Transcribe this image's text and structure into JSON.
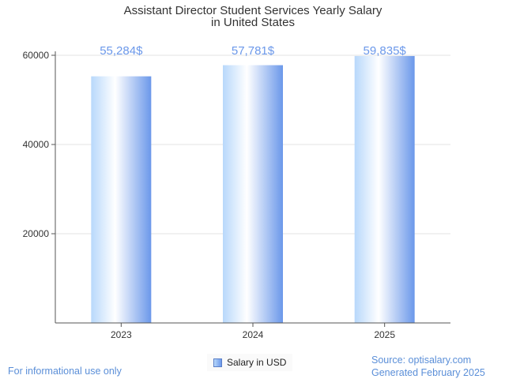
{
  "chart_data": {
    "type": "bar",
    "title_lines": [
      "Assistant Director Student Services Yearly Salary",
      "in United States"
    ],
    "categories": [
      "2023",
      "2024",
      "2025"
    ],
    "series": [
      {
        "name": "Salary in USD",
        "values": [
          55284,
          57781,
          59835
        ]
      }
    ],
    "data_labels": [
      "55,284$",
      "57,781$",
      "59,835$"
    ],
    "yticks": [
      20000,
      40000,
      60000
    ],
    "ylim": [
      0,
      60000
    ],
    "grid": true,
    "legend_position": "bottom-center",
    "xlabel": "",
    "ylabel": ""
  },
  "legend": {
    "label": "Salary in USD"
  },
  "footer": {
    "disclaimer": "For informational use only",
    "source": "Source: optisalary.com",
    "generated": "Generated February 2025"
  },
  "colors": {
    "label": "#6b98ea",
    "footer": "#5b8fd8",
    "bar_light": "#b8d8fb",
    "bar_dark": "#6b98ea"
  }
}
